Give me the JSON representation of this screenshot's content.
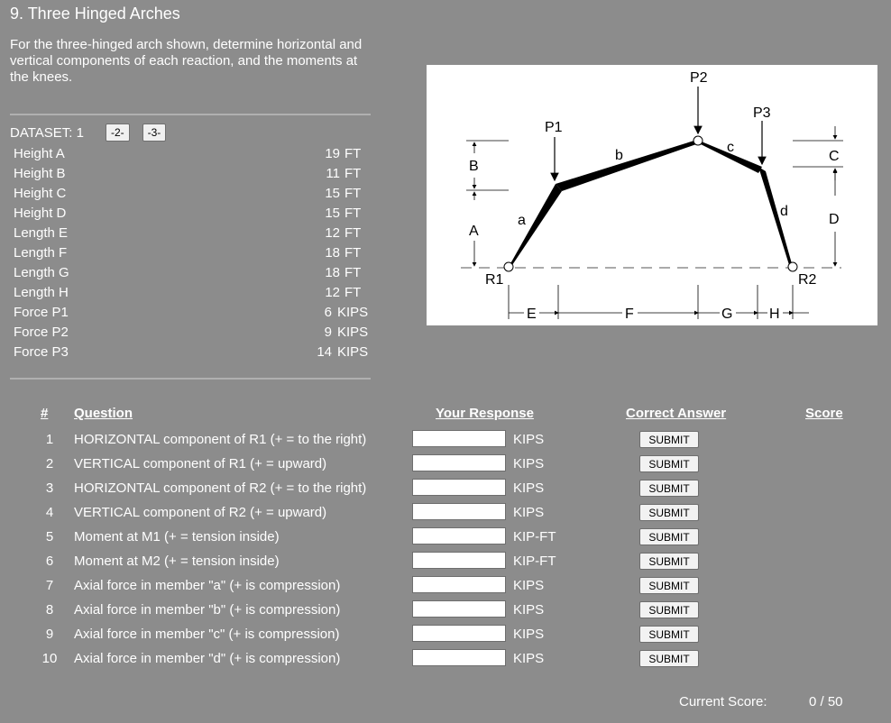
{
  "title": "9. Three Hinged Arches",
  "description": "For the three-hinged arch shown, determine horizontal and vertical components of each reaction, and the moments at the knees.",
  "dataset": {
    "label": "DATASET: 1",
    "buttons": [
      "-2-",
      "-3-"
    ]
  },
  "params": [
    {
      "name": "Height A",
      "value": "19",
      "unit": "FT"
    },
    {
      "name": "Height B",
      "value": "11",
      "unit": "FT"
    },
    {
      "name": "Height C",
      "value": "15",
      "unit": "FT"
    },
    {
      "name": "Height D",
      "value": "15",
      "unit": "FT"
    },
    {
      "name": "Length E",
      "value": "12",
      "unit": "FT"
    },
    {
      "name": "Length F",
      "value": "18",
      "unit": "FT"
    },
    {
      "name": "Length G",
      "value": "18",
      "unit": "FT"
    },
    {
      "name": "Length H",
      "value": "12",
      "unit": "FT"
    },
    {
      "name": "Force P1",
      "value": "6",
      "unit": "KIPS"
    },
    {
      "name": "Force P2",
      "value": "9",
      "unit": "KIPS"
    },
    {
      "name": "Force P3",
      "value": "14",
      "unit": "KIPS"
    }
  ],
  "diagram_labels": {
    "P1": "P1",
    "P2": "P2",
    "P3": "P3",
    "a": "a",
    "b": "b",
    "c": "c",
    "d": "d",
    "A": "A",
    "B": "B",
    "C": "C",
    "D": "D",
    "E": "E",
    "F": "F",
    "G": "G",
    "H": "H",
    "R1": "R1",
    "R2": "R2"
  },
  "table": {
    "headers": {
      "num": "#",
      "question": "Question",
      "response": "Your Response",
      "answer": "Correct Answer",
      "score": "Score"
    },
    "submit_label": "SUBMIT",
    "rows": [
      {
        "num": "1",
        "question": "HORIZONTAL component of R1 (+ = to the right)",
        "unit": "KIPS",
        "value": ""
      },
      {
        "num": "2",
        "question": "VERTICAL component of R1 (+ = upward)",
        "unit": "KIPS",
        "value": ""
      },
      {
        "num": "3",
        "question": "HORIZONTAL component of R2 (+ = to the right)",
        "unit": "KIPS",
        "value": ""
      },
      {
        "num": "4",
        "question": "VERTICAL component of R2 (+ = upward)",
        "unit": "KIPS",
        "value": ""
      },
      {
        "num": "5",
        "question": "Moment at M1 (+ = tension inside)",
        "unit": "KIP-FT",
        "value": ""
      },
      {
        "num": "6",
        "question": "Moment at M2 (+ = tension inside)",
        "unit": "KIP-FT",
        "value": ""
      },
      {
        "num": "7",
        "question": "Axial force in member \"a\" (+ is compression)",
        "unit": "KIPS",
        "value": ""
      },
      {
        "num": "8",
        "question": "Axial force in member \"b\" (+ is compression)",
        "unit": "KIPS",
        "value": ""
      },
      {
        "num": "9",
        "question": "Axial force in member \"c\" (+ is compression)",
        "unit": "KIPS",
        "value": ""
      },
      {
        "num": "10",
        "question": "Axial force in member \"d\" (+ is compression)",
        "unit": "KIPS",
        "value": ""
      }
    ]
  },
  "score": {
    "label": "Current Score:",
    "value": "0 / 50"
  }
}
